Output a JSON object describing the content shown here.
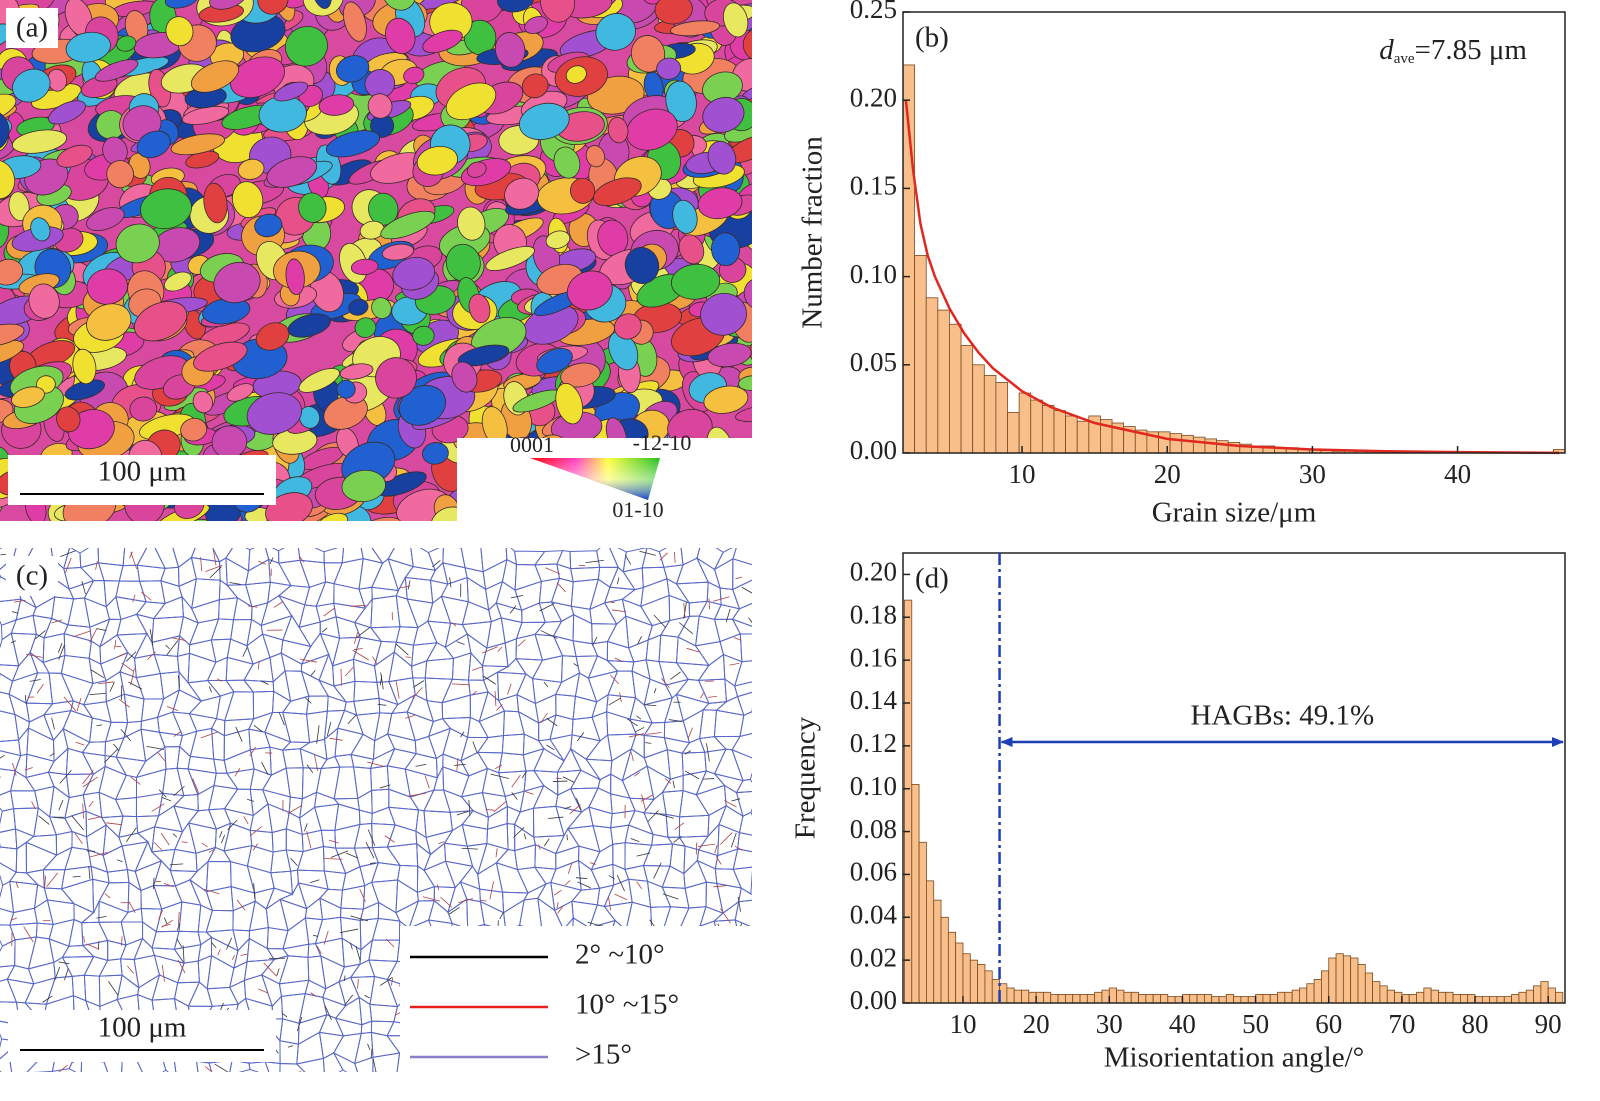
{
  "panels": [
    {
      "label": "(a)",
      "scale_bar": "100 μm",
      "ipf_key": {
        "corners": [
          "0001",
          "-12-10",
          "01-10"
        ]
      }
    },
    {
      "label": "(c)",
      "scale_bar": "100 μm",
      "legend": [
        {
          "name": "2° ~10°",
          "color": "#000000"
        },
        {
          "name": "10° ~15°",
          "color": "#e8231d"
        },
        {
          "name": ">15°",
          "color": "#8a7fc8"
        }
      ]
    }
  ],
  "chart_data": [
    {
      "type": "histogram",
      "label": "(b)",
      "xlabel": "Grain size/μm",
      "ylabel": "Number fraction",
      "color": "#f8bf8a",
      "edgecolor": "#7a4a20",
      "bins": [
        1.8,
        2.6,
        3.4,
        4.2,
        5,
        5.8,
        6.6,
        7.4,
        8.2,
        9,
        9.8,
        10.6,
        11.4,
        12.2,
        13,
        13.8,
        14.6,
        15.4,
        16.2,
        17,
        17.8,
        18.6,
        19.4,
        20.2,
        21,
        21.8,
        22.6,
        23.4,
        24.2,
        25,
        25.8,
        26.6,
        27.4,
        28.2,
        29,
        29.8,
        30.6,
        31.4,
        32.2,
        33,
        33.8,
        34.6,
        35.4,
        36.2,
        37,
        37.8,
        38.6,
        39.4,
        40.2,
        41,
        41.8,
        42.6,
        43.4,
        44.2,
        45,
        45.8,
        46.6,
        47.4
      ],
      "values": [
        0.22,
        0.112,
        0.088,
        0.081,
        0.073,
        0.061,
        0.05,
        0.044,
        0.04,
        0.023,
        0.034,
        0.03,
        0.027,
        0.024,
        0.021,
        0.018,
        0.021,
        0.019,
        0.017,
        0.015,
        0.013,
        0.012,
        0.012,
        0.011,
        0.01,
        0.009,
        0.008,
        0.007,
        0.006,
        0.005,
        0.004,
        0.004,
        0.003,
        0.003,
        0.002,
        0.002,
        0.002,
        0.001,
        0.001,
        0.001,
        0.001,
        0.001,
        0.001,
        0.001,
        0,
        0,
        0,
        0,
        0,
        0,
        0,
        0,
        0,
        0,
        0,
        0,
        0.002
      ],
      "fit": {
        "color": "#e0281e",
        "x": [
          2,
          2.5,
          3,
          3.5,
          4,
          5,
          6,
          7,
          8,
          10,
          12,
          15,
          20,
          25,
          30,
          35,
          40,
          47
        ],
        "y": [
          0.2,
          0.16,
          0.13,
          0.112,
          0.1,
          0.082,
          0.068,
          0.057,
          0.048,
          0.035,
          0.026,
          0.017,
          0.008,
          0.004,
          0.002,
          0.001,
          0.0005,
          0.0001
        ]
      },
      "annotation": {
        "symbol": "d",
        "subscript": "ave",
        "text": "=7.85 μm"
      },
      "xlim": [
        1.8,
        47.4
      ],
      "ylim": [
        0,
        0.25
      ],
      "xticks": [
        10,
        20,
        30,
        40
      ],
      "yticks": [
        {
          "value": 0,
          "label": "0.00"
        },
        0.05,
        {
          "value": 0.1,
          "label": "0.10"
        },
        0.15,
        {
          "value": 0.2,
          "label": "0.20"
        },
        0.25
      ]
    },
    {
      "type": "histogram",
      "label": "(d)",
      "xlabel": "Misorientation angle/°",
      "ylabel": "Frequency",
      "color": "#f8bf8a",
      "edgecolor": "#7a4a20",
      "bins": [
        2,
        3,
        4,
        5,
        6,
        7,
        8,
        9,
        10,
        11,
        12,
        13,
        14,
        15,
        16,
        17,
        18,
        19,
        20,
        21,
        22,
        23,
        24,
        25,
        26,
        27,
        28,
        29,
        30,
        31,
        32,
        33,
        34,
        35,
        36,
        37,
        38,
        39,
        40,
        41,
        42,
        43,
        44,
        45,
        46,
        47,
        48,
        49,
        50,
        51,
        52,
        53,
        54,
        55,
        56,
        57,
        58,
        59,
        60,
        61,
        62,
        63,
        64,
        65,
        66,
        67,
        68,
        69,
        70,
        71,
        72,
        73,
        74,
        75,
        76,
        77,
        78,
        79,
        80,
        81,
        82,
        83,
        84,
        85,
        86,
        87,
        88,
        89,
        90,
        91,
        92
      ],
      "values": [
        0.188,
        0.102,
        0.075,
        0.057,
        0.048,
        0.04,
        0.033,
        0.028,
        0.023,
        0.02,
        0.018,
        0.015,
        0.011,
        0.009,
        0.007,
        0.006,
        0.006,
        0.005,
        0.005,
        0.005,
        0.004,
        0.004,
        0.004,
        0.004,
        0.004,
        0.004,
        0.005,
        0.006,
        0.007,
        0.006,
        0.005,
        0.005,
        0.004,
        0.004,
        0.004,
        0.004,
        0.003,
        0.003,
        0.004,
        0.004,
        0.004,
        0.004,
        0.003,
        0.003,
        0.004,
        0.003,
        0.003,
        0.003,
        0.004,
        0.004,
        0.004,
        0.005,
        0.005,
        0.006,
        0.007,
        0.009,
        0.011,
        0.015,
        0.021,
        0.023,
        0.022,
        0.021,
        0.018,
        0.014,
        0.01,
        0.008,
        0.006,
        0.005,
        0.004,
        0.004,
        0.005,
        0.007,
        0.006,
        0.005,
        0.005,
        0.004,
        0.004,
        0.004,
        0.003,
        0.003,
        0.003,
        0.003,
        0.003,
        0.004,
        0.005,
        0.006,
        0.008,
        0.01,
        0.007,
        0.005
      ],
      "vline": {
        "value": 15,
        "color": "#1c3fb8"
      },
      "span": {
        "label": "HAGBs: 49.1%",
        "color": "#1c3fb8"
      },
      "xlim": [
        1.8,
        92.3
      ],
      "ylim": [
        0,
        0.21
      ],
      "xticks": [
        10,
        20,
        30,
        40,
        50,
        60,
        70,
        80,
        90
      ],
      "yticks": [
        {
          "value": 0,
          "label": "0.00"
        },
        0.02,
        0.04,
        0.06,
        0.08,
        {
          "value": 0.1,
          "label": "0.10"
        },
        0.12,
        0.14,
        0.16,
        0.18,
        {
          "value": 0.2,
          "label": "0.20"
        }
      ]
    }
  ]
}
